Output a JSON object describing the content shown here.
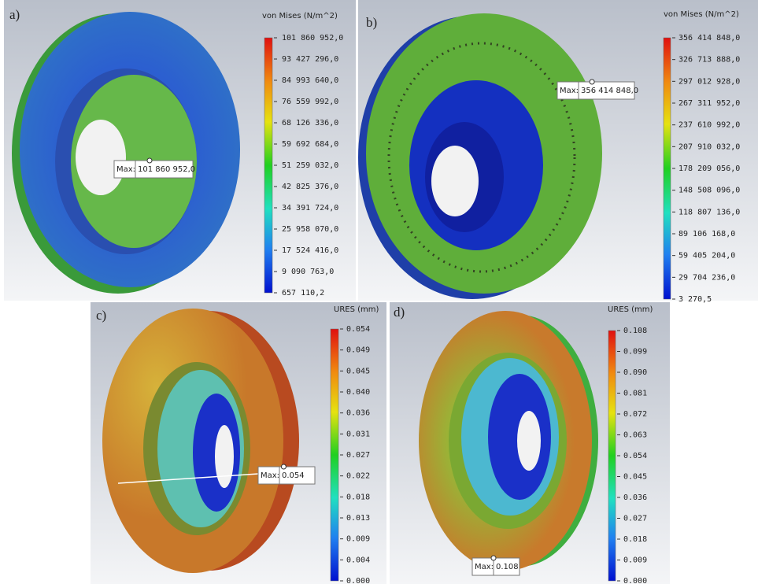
{
  "panels": [
    {
      "label": "a)",
      "legend_title": "von Mises (N/m^2)",
      "max_label": "Max:",
      "max_value": "101 860 952,0",
      "ticks": [
        "101 860 952,0",
        "93 427 296,0",
        "84 993 640,0",
        "76 559 992,0",
        "68 126 336,0",
        "59 692 684,0",
        "51 259 032,0",
        "42 825 376,0",
        "34 391 724,0",
        "25 958 070,0",
        "17 524 416,0",
        "9 090 763,0",
        "657 110,2"
      ]
    },
    {
      "label": "b)",
      "legend_title": "von Mises (N/m^2)",
      "max_label": "Max:",
      "max_value": "356 414 848,0",
      "ticks": [
        "356 414 848,0",
        "326 713 888,0",
        "297 012 928,0",
        "267 311 952,0",
        "237 610 992,0",
        "207 910 032,0",
        "178 209 056,0",
        "148 508 096,0",
        "118 807 136,0",
        "89 106 168,0",
        "59 405 204,0",
        "29 704 236,0",
        "3 270,5"
      ]
    },
    {
      "label": "c)",
      "legend_title": "URES (mm)",
      "max_label": "Max:",
      "max_value": "0.054",
      "ticks": [
        "0.054",
        "0.049",
        "0.045",
        "0.040",
        "0.036",
        "0.031",
        "0.027",
        "0.022",
        "0.018",
        "0.013",
        "0.009",
        "0.004",
        "0.000"
      ]
    },
    {
      "label": "d)",
      "legend_title": "URES (mm)",
      "max_label": "Max:",
      "max_value": "0.108",
      "ticks": [
        "0.108",
        "0.099",
        "0.090",
        "0.081",
        "0.072",
        "0.063",
        "0.054",
        "0.045",
        "0.036",
        "0.027",
        "0.018",
        "0.009",
        "0.000"
      ]
    }
  ]
}
